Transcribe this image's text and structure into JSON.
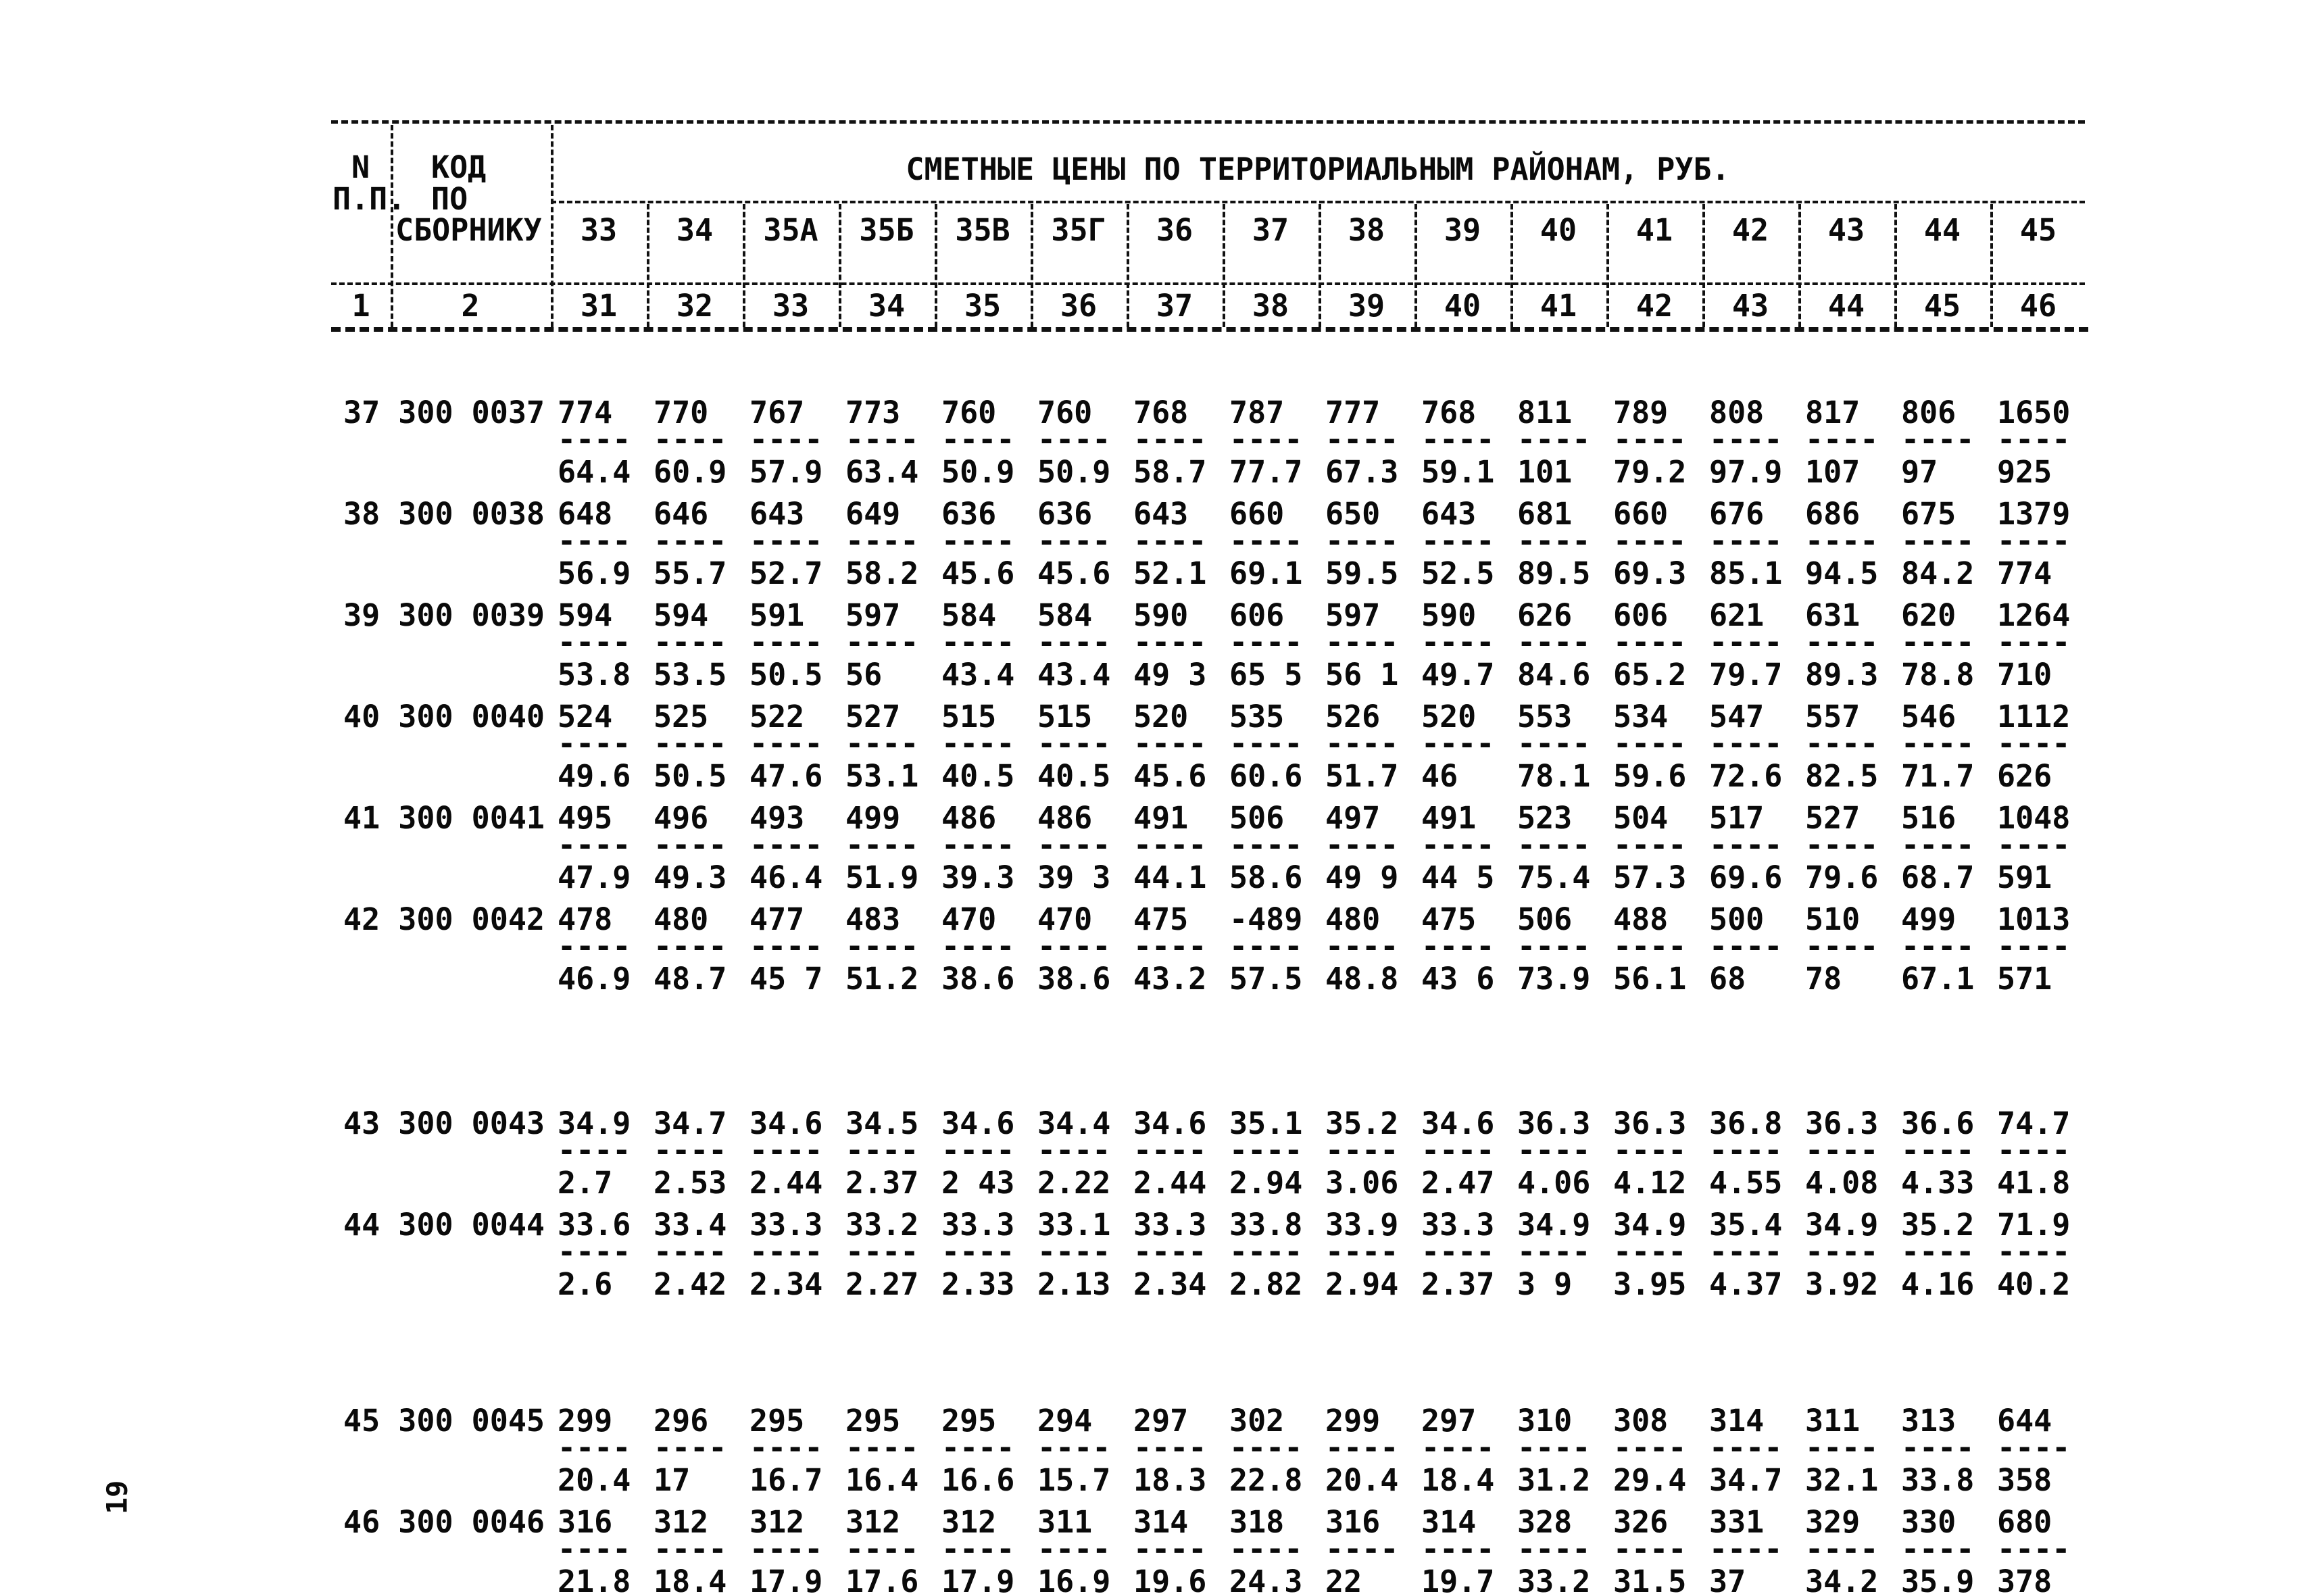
{
  "page": {
    "number": "19"
  },
  "header": {
    "title": "СМЕТНЫЕ ЦЕНЫ ПО ТЕРРИТОРИАЛЬНЫМ РАЙОНАМ, РУБ.",
    "col1_lines": [
      "N",
      "П.П."
    ],
    "col2_lines": [
      "КОД",
      "ПО",
      "СБОРНИКУ"
    ],
    "district_columns": [
      "33",
      "34",
      "35А",
      "35Б",
      "35В",
      "35Г",
      "36",
      "37",
      "38",
      "39",
      "40",
      "41",
      "42",
      "43",
      "44",
      "45"
    ],
    "numbering_row": [
      "1",
      "2",
      "31",
      "32",
      "33",
      "34",
      "35",
      "36",
      "37",
      "38",
      "39",
      "40",
      "41",
      "42",
      "43",
      "44",
      "45",
      "46"
    ]
  },
  "table": {
    "fraction_bar": "----",
    "rows": [
      {
        "code": "37 300 0037",
        "num": [
          "774",
          "770",
          "767",
          "773",
          "760",
          "760",
          "768",
          "787",
          "777",
          "768",
          "811",
          "789",
          "808",
          "817",
          "806",
          "1650"
        ],
        "den": [
          "64.4",
          "60.9",
          "57.9",
          "63.4",
          "50.9",
          "50.9",
          "58.7",
          "77.7",
          "67.3",
          "59.1",
          "101",
          "79.2",
          "97.9",
          "107",
          "97",
          "925"
        ]
      },
      {
        "code": "38 300 0038",
        "num": [
          "648",
          "646",
          "643",
          "649",
          "636",
          "636",
          "643",
          "660",
          "650",
          "643",
          "681",
          "660",
          "676",
          "686",
          "675",
          "1379"
        ],
        "den": [
          "56.9",
          "55.7",
          "52.7",
          "58.2",
          "45.6",
          "45.6",
          "52.1",
          "69.1",
          "59.5",
          "52.5",
          "89.5",
          "69.3",
          "85.1",
          "94.5",
          "84.2",
          "774"
        ]
      },
      {
        "code": "39 300 0039",
        "num": [
          "594",
          "594",
          "591",
          "597",
          "584",
          "584",
          "590",
          "606",
          "597",
          "590",
          "626",
          "606",
          "621",
          "631",
          "620",
          "1264"
        ],
        "den": [
          "53.8",
          "53.5",
          "50.5",
          "56",
          "43.4",
          "43.4",
          "49 3",
          "65 5",
          "56 1",
          "49.7",
          "84.6",
          "65.2",
          "79.7",
          "89.3",
          "78.8",
          "710"
        ]
      },
      {
        "code": "40 300 0040",
        "num": [
          "524",
          "525",
          "522",
          "527",
          "515",
          "515",
          "520",
          "535",
          "526",
          "520",
          "553",
          "534",
          "547",
          "557",
          "546",
          "1112"
        ],
        "den": [
          "49.6",
          "50.5",
          "47.6",
          "53.1",
          "40.5",
          "40.5",
          "45.6",
          "60.6",
          "51.7",
          "46",
          "78.1",
          "59.6",
          "72.6",
          "82.5",
          "71.7",
          "626"
        ]
      },
      {
        "code": "41 300 0041",
        "num": [
          "495",
          "496",
          "493",
          "499",
          "486",
          "486",
          "491",
          "506",
          "497",
          "491",
          "523",
          "504",
          "517",
          "527",
          "516",
          "1048"
        ],
        "den": [
          "47.9",
          "49.3",
          "46.4",
          "51.9",
          "39.3",
          "39 3",
          "44.1",
          "58.6",
          "49 9",
          "44 5",
          "75.4",
          "57.3",
          "69.6",
          "79.6",
          "68.7",
          "591"
        ]
      },
      {
        "code": "42 300 0042",
        "num": [
          "478",
          "480",
          "477",
          "483",
          "470",
          "470",
          "475",
          "-489",
          "480",
          "475",
          "506",
          "488",
          "500",
          "510",
          "499",
          "1013"
        ],
        "den": [
          "46.9",
          "48.7",
          "45 7",
          "51.2",
          "38.6",
          "38.6",
          "43.2",
          "57.5",
          "48.8",
          "43 6",
          "73.9",
          "56.1",
          "68",
          "78",
          "67.1",
          "571"
        ]
      },
      {
        "code": "43 300 0043",
        "num": [
          "34.9",
          "34.7",
          "34.6",
          "34.5",
          "34.6",
          "34.4",
          "34.6",
          "35.1",
          "35.2",
          "34.6",
          "36.3",
          "36.3",
          "36.8",
          "36.3",
          "36.6",
          "74.7"
        ],
        "den": [
          "2.7",
          "2.53",
          "2.44",
          "2.37",
          "2 43",
          "2.22",
          "2.44",
          "2.94",
          "3.06",
          "2.47",
          "4.06",
          "4.12",
          "4.55",
          "4.08",
          "4.33",
          "41.8"
        ]
      },
      {
        "code": "44 300 0044",
        "num": [
          "33.6",
          "33.4",
          "33.3",
          "33.2",
          "33.3",
          "33.1",
          "33.3",
          "33.8",
          "33.9",
          "33.3",
          "34.9",
          "34.9",
          "35.4",
          "34.9",
          "35.2",
          "71.9"
        ],
        "den": [
          "2.6",
          "2.42",
          "2.34",
          "2.27",
          "2.33",
          "2.13",
          "2.34",
          "2.82",
          "2.94",
          "2.37",
          "3 9",
          "3.95",
          "4.37",
          "3.92",
          "4.16",
          "40.2"
        ]
      },
      {
        "code": "45 300 0045",
        "num": [
          "299",
          "296",
          "295",
          "295",
          "295",
          "294",
          "297",
          "302",
          "299",
          "297",
          "310",
          "308",
          "314",
          "311",
          "313",
          "644"
        ],
        "den": [
          "20.4",
          "17",
          "16.7",
          "16.4",
          "16.6",
          "15.7",
          "18.3",
          "22.8",
          "20.4",
          "18.4",
          "31.2",
          "29.4",
          "34.7",
          "32.1",
          "33.8",
          "358"
        ]
      },
      {
        "code": "46 300 0046",
        "num": [
          "316",
          "312",
          "312",
          "312",
          "312",
          "311",
          "314",
          "318",
          "316",
          "314",
          "328",
          "326",
          "331",
          "329",
          "330",
          "680"
        ],
        "den": [
          "21.8",
          "18.4",
          "17.9",
          "17.6",
          "17.9",
          "16.9",
          "19.6",
          "24.3",
          "22",
          "19.7",
          "33.2",
          "31.5",
          "37",
          "34.2",
          "35.9",
          "378"
        ]
      }
    ]
  }
}
